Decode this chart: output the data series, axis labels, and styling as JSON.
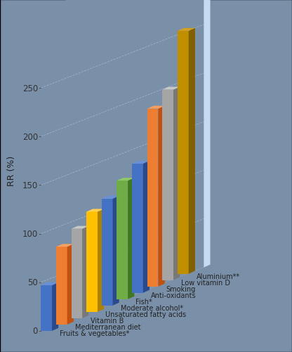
{
  "categories": [
    "Fruits & vegetables*",
    "Mediterranean diet",
    "Vitamin B",
    "Unsaturated fatty acids",
    "Moderate alcohol*",
    "Fish*",
    "Anti-oxidants",
    "Smoking",
    "Low vitamin D",
    "Aluminium**"
  ],
  "values": [
    47,
    80,
    92,
    103,
    110,
    122,
    133,
    183,
    196,
    250
  ],
  "bar_colors": [
    "#4472C4",
    "#ED7D31",
    "#A5A5A5",
    "#FFC000",
    "#4472C4",
    "#70AD47",
    "#4472C4",
    "#ED7D31",
    "#A5A5A5",
    "#BF8F00"
  ],
  "bar_top_colors": [
    "#6A90D8",
    "#F5A060",
    "#C8C8C8",
    "#FFD050",
    "#6A90D8",
    "#90C868",
    "#6A90D8",
    "#F5A060",
    "#C8C8C8",
    "#D4A020"
  ],
  "bar_side_colors": [
    "#2A4A8C",
    "#C05010",
    "#787878",
    "#B08000",
    "#2A4A8C",
    "#407820",
    "#2A4A8C",
    "#C05010",
    "#787878",
    "#806000"
  ],
  "ylabel": "RR (%)",
  "yticks": [
    0,
    50,
    100,
    150,
    200,
    250
  ],
  "ymax": 265,
  "wall_color": "#7A8FA8",
  "floor_color": "#9AAEC6",
  "right_panel_color": "#C5DCF0",
  "grid_color": "#AABBD0",
  "label_fontsize": 7.0,
  "ylabel_fontsize": 9
}
